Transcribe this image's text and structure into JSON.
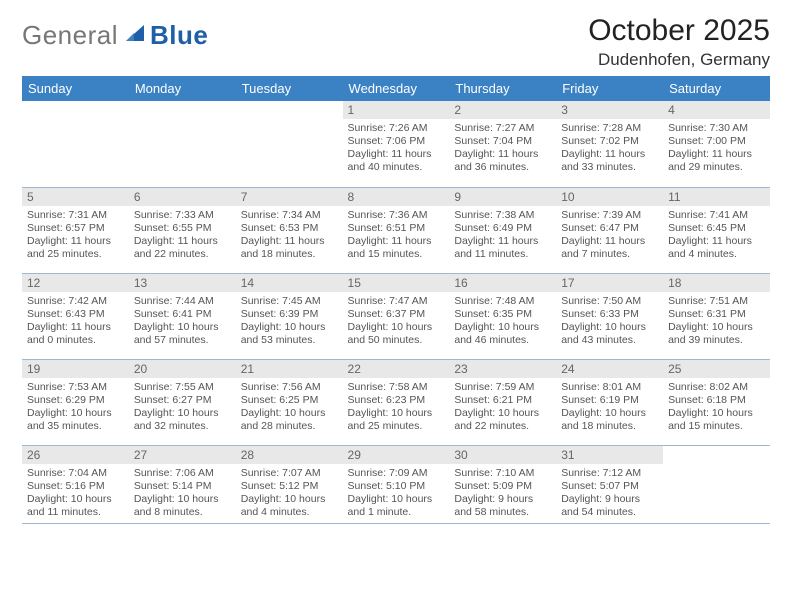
{
  "logo": {
    "general": "General",
    "blue": "Blue"
  },
  "header": {
    "title": "October 2025",
    "location": "Dudenhofen, Germany"
  },
  "colors": {
    "header_blue": "#3b82c4",
    "logo_blue": "#1f5fa8",
    "logo_gray": "#777777",
    "daynum_bg": "#e8e8e8",
    "cell_border": "#9fb8d0"
  },
  "days_of_week": [
    "Sunday",
    "Monday",
    "Tuesday",
    "Wednesday",
    "Thursday",
    "Friday",
    "Saturday"
  ],
  "weeks": [
    [
      {
        "n": null
      },
      {
        "n": null
      },
      {
        "n": null
      },
      {
        "n": "1",
        "sunrise": "Sunrise: 7:26 AM",
        "sunset": "Sunset: 7:06 PM",
        "daylight": "Daylight: 11 hours and 40 minutes."
      },
      {
        "n": "2",
        "sunrise": "Sunrise: 7:27 AM",
        "sunset": "Sunset: 7:04 PM",
        "daylight": "Daylight: 11 hours and 36 minutes."
      },
      {
        "n": "3",
        "sunrise": "Sunrise: 7:28 AM",
        "sunset": "Sunset: 7:02 PM",
        "daylight": "Daylight: 11 hours and 33 minutes."
      },
      {
        "n": "4",
        "sunrise": "Sunrise: 7:30 AM",
        "sunset": "Sunset: 7:00 PM",
        "daylight": "Daylight: 11 hours and 29 minutes."
      }
    ],
    [
      {
        "n": "5",
        "sunrise": "Sunrise: 7:31 AM",
        "sunset": "Sunset: 6:57 PM",
        "daylight": "Daylight: 11 hours and 25 minutes."
      },
      {
        "n": "6",
        "sunrise": "Sunrise: 7:33 AM",
        "sunset": "Sunset: 6:55 PM",
        "daylight": "Daylight: 11 hours and 22 minutes."
      },
      {
        "n": "7",
        "sunrise": "Sunrise: 7:34 AM",
        "sunset": "Sunset: 6:53 PM",
        "daylight": "Daylight: 11 hours and 18 minutes."
      },
      {
        "n": "8",
        "sunrise": "Sunrise: 7:36 AM",
        "sunset": "Sunset: 6:51 PM",
        "daylight": "Daylight: 11 hours and 15 minutes."
      },
      {
        "n": "9",
        "sunrise": "Sunrise: 7:38 AM",
        "sunset": "Sunset: 6:49 PM",
        "daylight": "Daylight: 11 hours and 11 minutes."
      },
      {
        "n": "10",
        "sunrise": "Sunrise: 7:39 AM",
        "sunset": "Sunset: 6:47 PM",
        "daylight": "Daylight: 11 hours and 7 minutes."
      },
      {
        "n": "11",
        "sunrise": "Sunrise: 7:41 AM",
        "sunset": "Sunset: 6:45 PM",
        "daylight": "Daylight: 11 hours and 4 minutes."
      }
    ],
    [
      {
        "n": "12",
        "sunrise": "Sunrise: 7:42 AM",
        "sunset": "Sunset: 6:43 PM",
        "daylight": "Daylight: 11 hours and 0 minutes."
      },
      {
        "n": "13",
        "sunrise": "Sunrise: 7:44 AM",
        "sunset": "Sunset: 6:41 PM",
        "daylight": "Daylight: 10 hours and 57 minutes."
      },
      {
        "n": "14",
        "sunrise": "Sunrise: 7:45 AM",
        "sunset": "Sunset: 6:39 PM",
        "daylight": "Daylight: 10 hours and 53 minutes."
      },
      {
        "n": "15",
        "sunrise": "Sunrise: 7:47 AM",
        "sunset": "Sunset: 6:37 PM",
        "daylight": "Daylight: 10 hours and 50 minutes."
      },
      {
        "n": "16",
        "sunrise": "Sunrise: 7:48 AM",
        "sunset": "Sunset: 6:35 PM",
        "daylight": "Daylight: 10 hours and 46 minutes."
      },
      {
        "n": "17",
        "sunrise": "Sunrise: 7:50 AM",
        "sunset": "Sunset: 6:33 PM",
        "daylight": "Daylight: 10 hours and 43 minutes."
      },
      {
        "n": "18",
        "sunrise": "Sunrise: 7:51 AM",
        "sunset": "Sunset: 6:31 PM",
        "daylight": "Daylight: 10 hours and 39 minutes."
      }
    ],
    [
      {
        "n": "19",
        "sunrise": "Sunrise: 7:53 AM",
        "sunset": "Sunset: 6:29 PM",
        "daylight": "Daylight: 10 hours and 35 minutes."
      },
      {
        "n": "20",
        "sunrise": "Sunrise: 7:55 AM",
        "sunset": "Sunset: 6:27 PM",
        "daylight": "Daylight: 10 hours and 32 minutes."
      },
      {
        "n": "21",
        "sunrise": "Sunrise: 7:56 AM",
        "sunset": "Sunset: 6:25 PM",
        "daylight": "Daylight: 10 hours and 28 minutes."
      },
      {
        "n": "22",
        "sunrise": "Sunrise: 7:58 AM",
        "sunset": "Sunset: 6:23 PM",
        "daylight": "Daylight: 10 hours and 25 minutes."
      },
      {
        "n": "23",
        "sunrise": "Sunrise: 7:59 AM",
        "sunset": "Sunset: 6:21 PM",
        "daylight": "Daylight: 10 hours and 22 minutes."
      },
      {
        "n": "24",
        "sunrise": "Sunrise: 8:01 AM",
        "sunset": "Sunset: 6:19 PM",
        "daylight": "Daylight: 10 hours and 18 minutes."
      },
      {
        "n": "25",
        "sunrise": "Sunrise: 8:02 AM",
        "sunset": "Sunset: 6:18 PM",
        "daylight": "Daylight: 10 hours and 15 minutes."
      }
    ],
    [
      {
        "n": "26",
        "sunrise": "Sunrise: 7:04 AM",
        "sunset": "Sunset: 5:16 PM",
        "daylight": "Daylight: 10 hours and 11 minutes."
      },
      {
        "n": "27",
        "sunrise": "Sunrise: 7:06 AM",
        "sunset": "Sunset: 5:14 PM",
        "daylight": "Daylight: 10 hours and 8 minutes."
      },
      {
        "n": "28",
        "sunrise": "Sunrise: 7:07 AM",
        "sunset": "Sunset: 5:12 PM",
        "daylight": "Daylight: 10 hours and 4 minutes."
      },
      {
        "n": "29",
        "sunrise": "Sunrise: 7:09 AM",
        "sunset": "Sunset: 5:10 PM",
        "daylight": "Daylight: 10 hours and 1 minute."
      },
      {
        "n": "30",
        "sunrise": "Sunrise: 7:10 AM",
        "sunset": "Sunset: 5:09 PM",
        "daylight": "Daylight: 9 hours and 58 minutes."
      },
      {
        "n": "31",
        "sunrise": "Sunrise: 7:12 AM",
        "sunset": "Sunset: 5:07 PM",
        "daylight": "Daylight: 9 hours and 54 minutes."
      },
      {
        "n": null
      }
    ]
  ]
}
